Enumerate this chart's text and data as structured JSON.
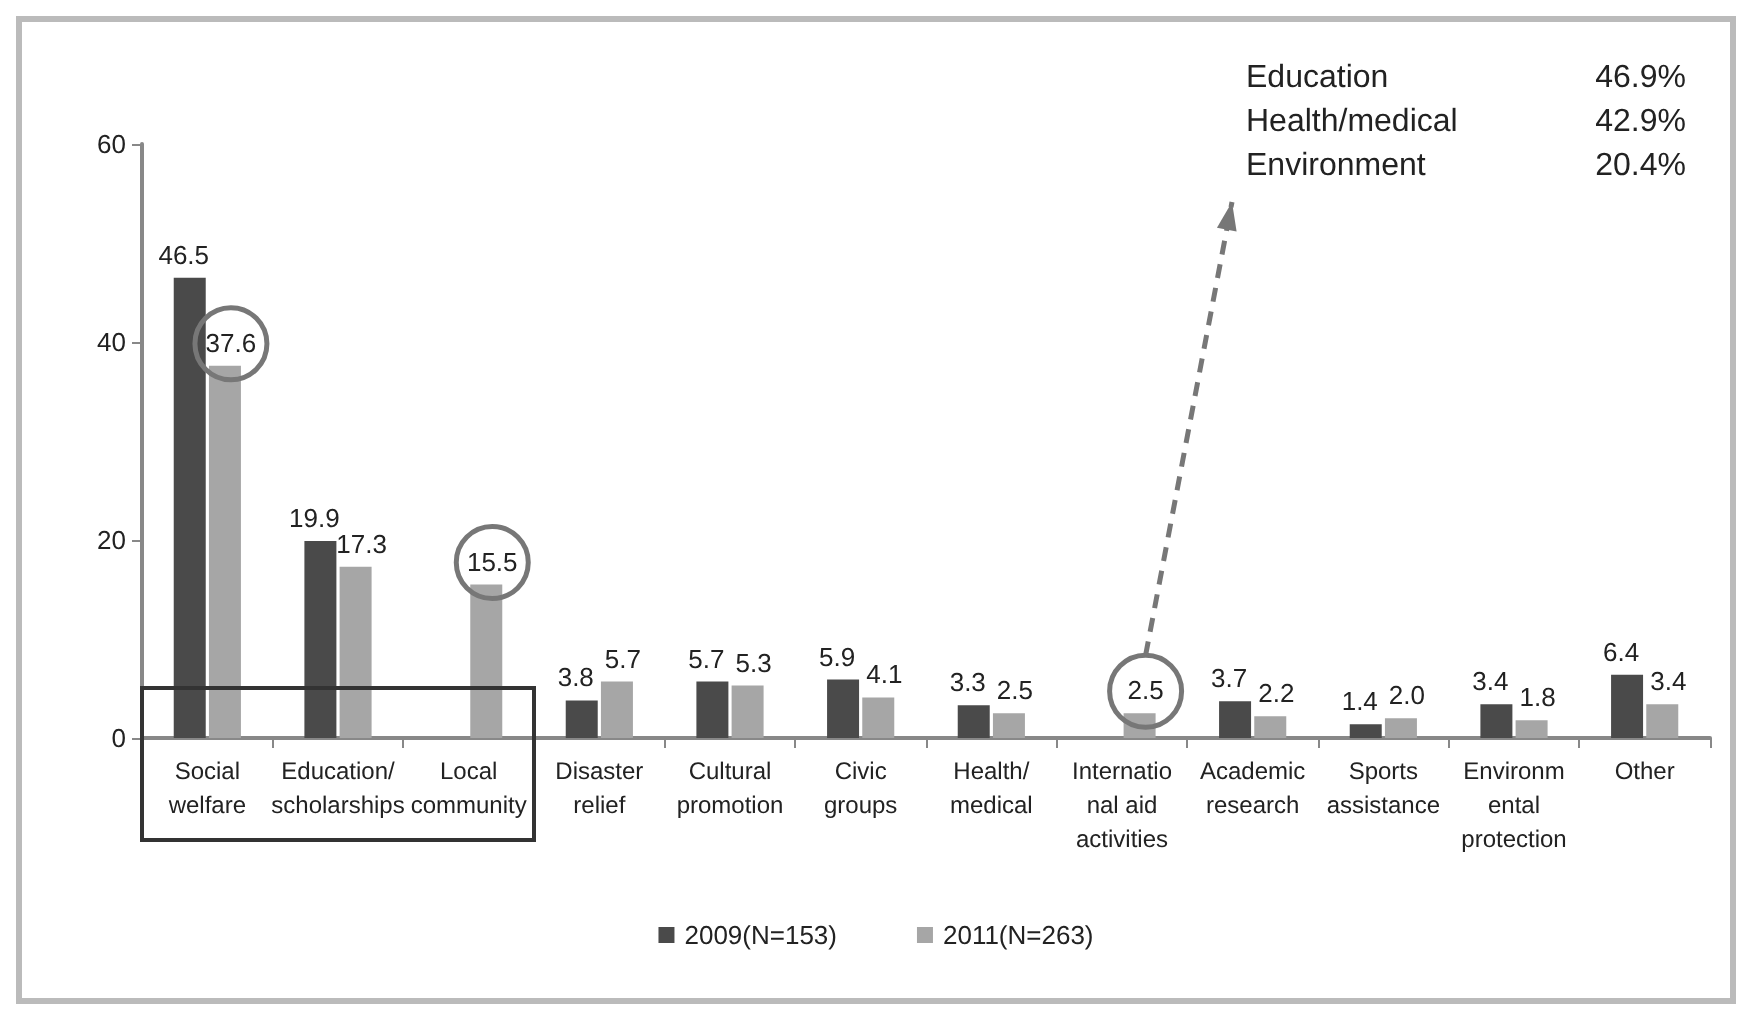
{
  "chart_data": {
    "type": "bar",
    "categories": [
      "Social\nwelfare",
      "Education/\nscholarships",
      "Local\ncommunity",
      "Disaster\nrelief",
      "Cultural\npromotion",
      "Civic\ngroups",
      "Health/\nmedical",
      "Internatio\nnal aid\nactivities",
      "Academic\nresearch",
      "Sports\nassistance",
      "Environm\nental\nprotection",
      "Other"
    ],
    "series": [
      {
        "name": "2009(N=153)",
        "color": "#4a4a4a",
        "values": [
          46.5,
          19.9,
          null,
          3.8,
          5.7,
          5.9,
          3.3,
          null,
          3.7,
          1.4,
          3.4,
          6.4
        ],
        "value_labels": [
          "46.5",
          "19.9",
          null,
          "3.8",
          "5.7",
          "5.9",
          "3.3",
          null,
          "3.7",
          "1.4",
          "3.4",
          "6.4"
        ]
      },
      {
        "name": "2011(N=263)",
        "color": "#a6a6a6",
        "values": [
          37.6,
          17.3,
          15.5,
          5.7,
          5.3,
          4.1,
          2.5,
          2.5,
          2.2,
          2.0,
          1.8,
          3.4
        ],
        "value_labels": [
          "37.6",
          "17.3",
          "15.5",
          "5.7",
          "5.3",
          "4.1",
          "2.5",
          "2.5",
          "2.2",
          "2.0",
          "1.8",
          "3.4"
        ]
      }
    ],
    "ylim": [
      0,
      60
    ],
    "yticks": [
      0,
      20,
      40,
      60
    ],
    "grid": false,
    "legend": "bottom",
    "annotations": [
      "Education 46.9%",
      "Health/medical 42.9%",
      "Environment 20.4%"
    ]
  }
}
